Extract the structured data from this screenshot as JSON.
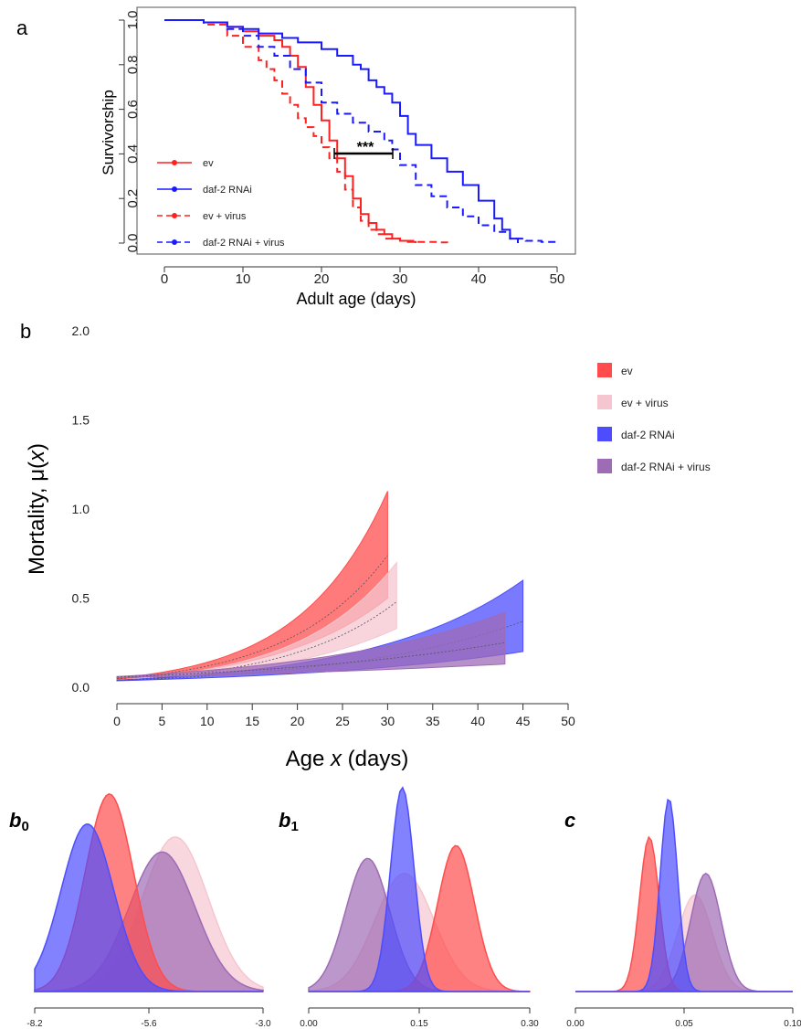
{
  "colors": {
    "red": "#ff2020",
    "blue": "#1a1aff",
    "pink": "#f4b8c6",
    "purple": "#9a60b4",
    "red_fill": "#ff4d4d",
    "blue_fill": "#4d4dff",
    "pink_fill": "#f5c6d0",
    "purple_fill": "#9e6bb5"
  },
  "chart_data": [
    {
      "panel_label": "a",
      "type": "line",
      "xlabel": "Adult age (days)",
      "ylabel": "Survivorship",
      "xlim": [
        0,
        50
      ],
      "ylim": [
        0,
        1
      ],
      "xticks": [
        "0",
        "10",
        "20",
        "30",
        "40",
        "50"
      ],
      "yticks": [
        "0.0",
        "0.2",
        "0.4",
        "0.6",
        "0.8",
        "1.0"
      ],
      "annotation": "***",
      "legend_position": "bottom-left",
      "series": [
        {
          "name": "ev",
          "color": "red",
          "style": "solid",
          "x": [
            0,
            5,
            8,
            10,
            12,
            14,
            15,
            16,
            17,
            18,
            19,
            20,
            21,
            22,
            23,
            24,
            25,
            26,
            27,
            28,
            29,
            30,
            31,
            32
          ],
          "y": [
            1.0,
            0.99,
            0.97,
            0.95,
            0.93,
            0.91,
            0.88,
            0.84,
            0.79,
            0.7,
            0.62,
            0.55,
            0.46,
            0.38,
            0.3,
            0.2,
            0.13,
            0.09,
            0.06,
            0.04,
            0.02,
            0.01,
            0.005,
            0.0
          ]
        },
        {
          "name": "daf-2 RNAi",
          "color": "blue",
          "style": "solid",
          "x": [
            0,
            5,
            8,
            10,
            12,
            15,
            17,
            20,
            22,
            24,
            25,
            26,
            27,
            28,
            29,
            30,
            31,
            32,
            34,
            36,
            38,
            40,
            42,
            43,
            44,
            45
          ],
          "y": [
            1.0,
            0.99,
            0.97,
            0.96,
            0.94,
            0.92,
            0.9,
            0.87,
            0.84,
            0.8,
            0.78,
            0.73,
            0.7,
            0.67,
            0.63,
            0.57,
            0.49,
            0.44,
            0.38,
            0.32,
            0.26,
            0.19,
            0.11,
            0.06,
            0.02,
            0.0
          ]
        },
        {
          "name": "ev + virus",
          "color": "red",
          "style": "dashed",
          "x": [
            0,
            5,
            8,
            10,
            12,
            13,
            14,
            15,
            16,
            17,
            18,
            19,
            20,
            21,
            22,
            23,
            24,
            25,
            26,
            27,
            28,
            30,
            32,
            35,
            36
          ],
          "y": [
            1.0,
            0.98,
            0.93,
            0.88,
            0.82,
            0.78,
            0.73,
            0.67,
            0.62,
            0.56,
            0.52,
            0.48,
            0.43,
            0.38,
            0.32,
            0.24,
            0.16,
            0.1,
            0.06,
            0.04,
            0.02,
            0.01,
            0.005,
            0.003,
            0.0
          ]
        },
        {
          "name": "daf-2 RNAi + virus",
          "color": "blue",
          "style": "dashed",
          "x": [
            0,
            5,
            8,
            10,
            12,
            14,
            16,
            18,
            20,
            22,
            24,
            26,
            28,
            29,
            30,
            32,
            34,
            36,
            38,
            40,
            42,
            44,
            46,
            48,
            50
          ],
          "y": [
            1.0,
            0.99,
            0.96,
            0.93,
            0.88,
            0.84,
            0.78,
            0.72,
            0.63,
            0.58,
            0.54,
            0.5,
            0.46,
            0.42,
            0.35,
            0.26,
            0.21,
            0.16,
            0.12,
            0.08,
            0.05,
            0.02,
            0.01,
            0.005,
            0.0
          ]
        }
      ]
    },
    {
      "panel_label": "b",
      "type": "area",
      "xlabel_prefix": "Age ",
      "xlabel_var": "x",
      "xlabel_suffix": " (days)",
      "ylabel_prefix": "Mortality, μ(",
      "ylabel_var": "x",
      "ylabel_suffix": ")",
      "xlim": [
        0,
        50
      ],
      "ylim": [
        0,
        2
      ],
      "xticks": [
        "0",
        "5",
        "10",
        "15",
        "20",
        "25",
        "30",
        "35",
        "40",
        "45",
        "50"
      ],
      "yticks": [
        "0.0",
        "0.5",
        "1.0",
        "1.5",
        "2.0"
      ],
      "legend_position": "top-right",
      "series": [
        {
          "name": "ev",
          "color": "red_fill",
          "x_end": 30,
          "upper_end": 1.1,
          "lower_end": 0.5,
          "mid_end": 0.74,
          "base": 0.05
        },
        {
          "name": "ev + virus",
          "color": "pink_fill",
          "x_end": 31,
          "upper_end": 0.7,
          "lower_end": 0.33,
          "mid_end": 0.48,
          "base": 0.04
        },
        {
          "name": "daf-2 RNAi",
          "color": "blue_fill",
          "x_end": 45,
          "upper_end": 0.6,
          "lower_end": 0.2,
          "mid_end": 0.37,
          "base": 0.04
        },
        {
          "name": "daf-2 RNAi + virus",
          "color": "purple_fill",
          "x_end": 43,
          "upper_end": 0.42,
          "lower_end": 0.13,
          "mid_end": 0.25,
          "base": 0.06
        }
      ]
    },
    {
      "type": "area",
      "label_main": "b",
      "label_sub": "0",
      "xticks": [
        "-8.2",
        "-5.6",
        "-3.0"
      ],
      "xlim": [
        -8.2,
        -3.0
      ],
      "series": [
        {
          "name": "ev",
          "color": "red_fill",
          "mean": -6.5,
          "sd": 0.55,
          "height": 0.92
        },
        {
          "name": "daf-2 RNAi",
          "color": "blue_fill",
          "mean": -7.0,
          "sd": 0.6,
          "height": 0.78
        },
        {
          "name": "ev + virus",
          "color": "pink_fill",
          "mean": -5.0,
          "sd": 0.75,
          "height": 0.72
        },
        {
          "name": "daf-2 RNAi + virus",
          "color": "purple_fill",
          "mean": -5.3,
          "sd": 0.75,
          "height": 0.65
        }
      ]
    },
    {
      "type": "area",
      "label_main": "b",
      "label_sub": "1",
      "xticks": [
        "0.00",
        "0.15",
        "0.30"
      ],
      "xlim": [
        0.0,
        0.3
      ],
      "series": [
        {
          "name": "ev",
          "color": "red_fill",
          "mean": 0.2,
          "sd": 0.025,
          "height": 0.68
        },
        {
          "name": "daf-2 RNAi",
          "color": "blue_fill",
          "mean": 0.127,
          "sd": 0.016,
          "height": 0.95
        },
        {
          "name": "ev + virus",
          "color": "pink_fill",
          "mean": 0.13,
          "sd": 0.04,
          "height": 0.55
        },
        {
          "name": "daf-2 RNAi + virus",
          "color": "purple_fill",
          "mean": 0.08,
          "sd": 0.03,
          "height": 0.62
        }
      ]
    },
    {
      "type": "area",
      "label_main": "c",
      "label_sub": "",
      "xticks": [
        "0.00",
        "0.05",
        "0.10"
      ],
      "xlim": [
        0.0,
        0.1
      ],
      "series": [
        {
          "name": "ev",
          "color": "red_fill",
          "mean": 0.034,
          "sd": 0.0045,
          "height": 0.72
        },
        {
          "name": "daf-2 RNAi",
          "color": "blue_fill",
          "mean": 0.043,
          "sd": 0.004,
          "height": 0.9
        },
        {
          "name": "ev + virus",
          "color": "pink_fill",
          "mean": 0.055,
          "sd": 0.008,
          "height": 0.45
        },
        {
          "name": "daf-2 RNAi + virus",
          "color": "purple_fill",
          "mean": 0.06,
          "sd": 0.007,
          "height": 0.55
        }
      ]
    }
  ]
}
